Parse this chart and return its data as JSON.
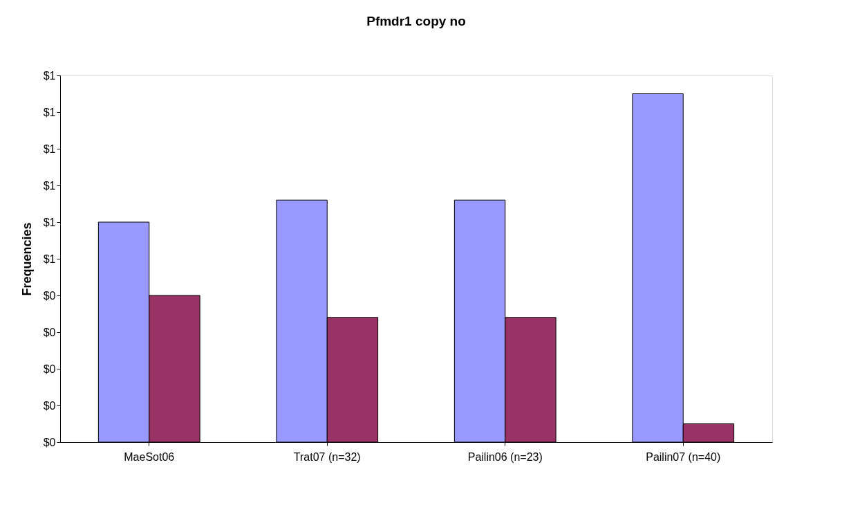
{
  "chart_data": {
    "type": "bar",
    "title": "Pfmdr1 copy no",
    "ylabel": "Frequencies",
    "categories": [
      "MaeSot06",
      "Trat07 (n=32)",
      "Pailin06 (n=23)",
      "Pailin07 (n=40)"
    ],
    "series": [
      {
        "color": "#9999ff",
        "values": [
          0.6,
          0.66,
          0.66,
          0.95
        ]
      },
      {
        "color": "#993366",
        "values": [
          0.4,
          0.34,
          0.34,
          0.05
        ]
      }
    ],
    "ylim": [
      0,
      1
    ],
    "yticks": [
      {
        "value": 0,
        "label": "$0"
      },
      {
        "value": 0.1,
        "label": "$0"
      },
      {
        "value": 0.2,
        "label": "$0"
      },
      {
        "value": 0.3,
        "label": "$0"
      },
      {
        "value": 0.4,
        "label": "$0"
      },
      {
        "value": 0.5,
        "label": "$1"
      },
      {
        "value": 0.6,
        "label": "$1"
      },
      {
        "value": 0.7,
        "label": "$1"
      },
      {
        "value": 0.8,
        "label": "$1"
      },
      {
        "value": 0.9,
        "label": "$1"
      },
      {
        "value": 1.0,
        "label": "$1"
      }
    ],
    "grid": false,
    "legend": false
  }
}
